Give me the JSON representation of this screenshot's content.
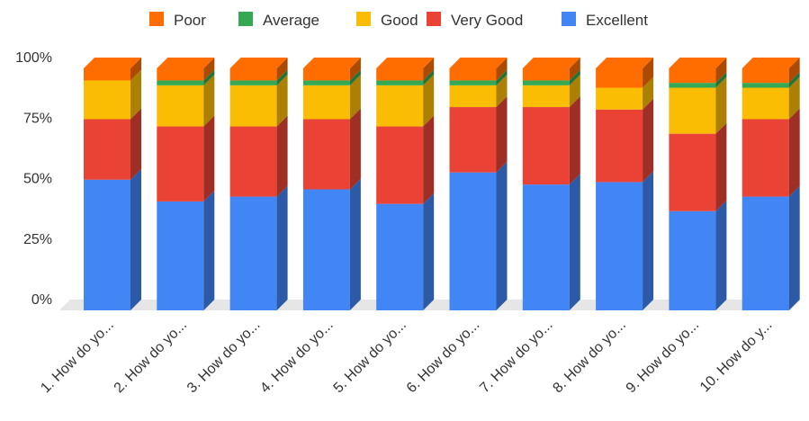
{
  "chart_data": {
    "type": "bar",
    "stacked": true,
    "three_d": true,
    "title": "",
    "xlabel": "",
    "ylabel": "",
    "ylim": [
      0,
      100
    ],
    "y_ticks": [
      "0%",
      "25%",
      "50%",
      "75%",
      "100%"
    ],
    "legend_position": "top",
    "grid": false,
    "categories": [
      "1. How do yo...",
      "2. How do yo...",
      "3. How do yo...",
      "4. How do yo...",
      "5. How do yo...",
      "6. How do yo...",
      "7. How do yo...",
      "8. How do yo...",
      "9. How do yo...",
      "10. How do y..."
    ],
    "legend_order": [
      "Poor",
      "Average",
      "Good",
      "Very Good",
      "Excellent"
    ],
    "series": [
      {
        "name": "Excellent",
        "color": "#4285F4",
        "values": [
          54,
          45,
          47,
          50,
          44,
          57,
          52,
          53,
          41,
          47
        ]
      },
      {
        "name": "Very Good",
        "color": "#EA4335",
        "values": [
          25,
          31,
          29,
          29,
          32,
          27,
          32,
          30,
          32,
          32
        ]
      },
      {
        "name": "Good",
        "color": "#FBBC04",
        "values": [
          16,
          17,
          17,
          14,
          17,
          9,
          9,
          9,
          19,
          13
        ]
      },
      {
        "name": "Average",
        "color": "#34A853",
        "values": [
          0,
          2,
          2,
          2,
          2,
          2,
          2,
          0,
          2,
          2
        ]
      },
      {
        "name": "Poor",
        "color": "#FF6D01",
        "values": [
          5,
          5,
          5,
          5,
          5,
          5,
          5,
          8,
          6,
          6
        ]
      }
    ]
  }
}
